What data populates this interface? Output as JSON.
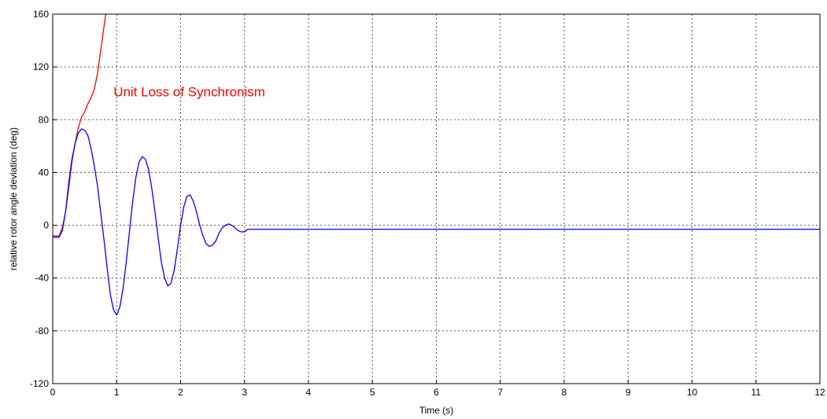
{
  "chart_data": {
    "type": "line",
    "xlabel": "Time (s)",
    "ylabel": "relative rotor angle deviation (deg)",
    "xlim": [
      0,
      12
    ],
    "ylim": [
      -120,
      160
    ],
    "xticks": [
      0,
      1,
      2,
      3,
      4,
      5,
      6,
      7,
      8,
      9,
      10,
      11,
      12
    ],
    "yticks": [
      -120,
      -80,
      -40,
      0,
      40,
      80,
      120,
      160
    ],
    "grid": true,
    "annotation": {
      "text": "Unit Loss of Synchronism",
      "x": 0.95,
      "y": 100,
      "color": "#ff0000"
    },
    "series": [
      {
        "color": "#ff0000",
        "x": [
          0,
          0.1,
          0.15,
          0.2,
          0.25,
          0.3,
          0.35,
          0.4,
          0.45,
          0.5,
          0.55,
          0.6,
          0.65,
          0.7,
          0.75,
          0.8,
          0.83
        ],
        "y": [
          -8,
          -8,
          -2,
          10,
          28,
          48,
          62,
          74,
          82,
          86,
          92,
          97,
          103,
          115,
          132,
          150,
          160
        ]
      },
      {
        "color": "#0000ff",
        "x": [
          0,
          0.1,
          0.15,
          0.2,
          0.25,
          0.3,
          0.35,
          0.4,
          0.45,
          0.5,
          0.55,
          0.6,
          0.65,
          0.7,
          0.75,
          0.8,
          0.85,
          0.9,
          0.95,
          1.0,
          1.05,
          1.1,
          1.15,
          1.2,
          1.25,
          1.3,
          1.35,
          1.4,
          1.45,
          1.5,
          1.55,
          1.6,
          1.65,
          1.7,
          1.75,
          1.8,
          1.85,
          1.9,
          1.95,
          2.0,
          2.05,
          2.1,
          2.15,
          2.2,
          2.25,
          2.3,
          2.35,
          2.4,
          2.45,
          2.5,
          2.55,
          2.6,
          2.65,
          2.7,
          2.75,
          2.8,
          2.85,
          2.9,
          2.95,
          3.0,
          3.05,
          3.1,
          3.2,
          3.3,
          3.4,
          3.5,
          3.6,
          3.7,
          3.8,
          3.9,
          4.0,
          4.1,
          4.3,
          4.5,
          4.7,
          5.0,
          5.5,
          6.0,
          7.0,
          8.0,
          9.0,
          10.0,
          11.0,
          12.0
        ],
        "y": [
          -9,
          -9,
          -4,
          10,
          32,
          50,
          62,
          70,
          73,
          72,
          68,
          58,
          45,
          30,
          10,
          -10,
          -32,
          -52,
          -64,
          -68,
          -62,
          -48,
          -28,
          -5,
          18,
          36,
          48,
          52,
          50,
          42,
          28,
          10,
          -10,
          -28,
          -40,
          -46,
          -44,
          -34,
          -18,
          0,
          14,
          22,
          23,
          18,
          10,
          0,
          -8,
          -14,
          -16,
          -15,
          -12,
          -6,
          -2,
          0,
          1,
          0,
          -2,
          -4,
          -5,
          -5,
          -3,
          -3,
          -3,
          -3,
          -3,
          -3,
          -3,
          -3,
          -3,
          -3,
          -3,
          -3,
          -3,
          -3,
          -3,
          -3,
          -3,
          -3,
          -3,
          -3,
          -3,
          -3,
          -3,
          -3
        ]
      }
    ]
  }
}
